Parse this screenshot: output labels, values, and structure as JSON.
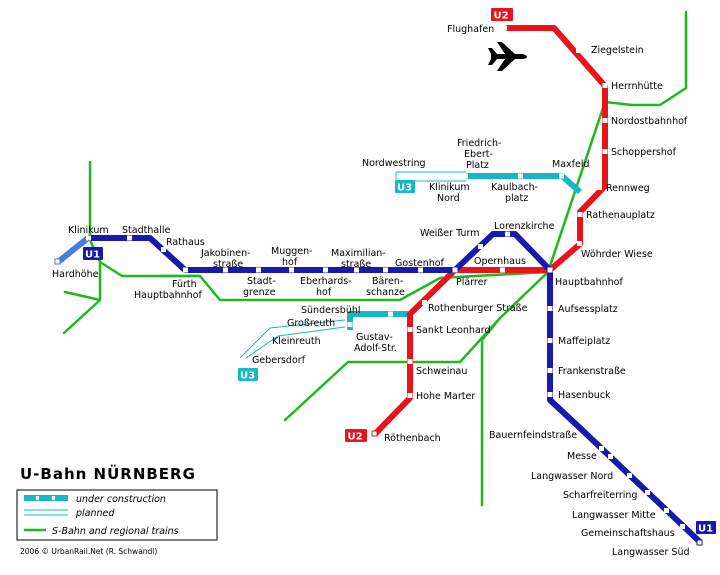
{
  "title": "U-Bahn NÜRNBERG",
  "credit": "2006 © UrbanRail.Net (R. Schwandl)",
  "legend": {
    "under_construction": "under construction",
    "planned": "planned",
    "sbahn": "S-Bahn and regional trains"
  },
  "lines": {
    "u1": {
      "label": "U1",
      "color": "#1a1aaa"
    },
    "u2": {
      "label": "U2",
      "color": "#e8141b"
    },
    "u3": {
      "label": "U3",
      "color": "#16b8c8"
    },
    "sbahn": {
      "color": "#1fb81f"
    }
  },
  "stations": {
    "flughafen": "Flughafen",
    "ziegelstein": "Ziegelstein",
    "herrnhuette": "Herrnhütte",
    "nordostbahnhof": "Nordostbahnhof",
    "schoppershof": "Schoppershof",
    "rennweg": "Rennweg",
    "rathenauplatz": "Rathenauplatz",
    "woehrder_wiese": "Wöhrder Wiese",
    "hauptbahnhof": "Hauptbahnhof",
    "aufsessplatz": "Aufsessplatz",
    "maffeiplatz": "Maffeiplatz",
    "frankenstrasse": "Frankenstraße",
    "hasenbuck": "Hasenbuck",
    "bauernfeindstrasse": "Bauernfeindstraße",
    "messe": "Messe",
    "langwasser_nord": "Langwasser Nord",
    "scharfreiterring": "Scharfreiterring",
    "langwasser_mitte": "Langwasser Mitte",
    "gemeinschaftshaus": "Gemeinschaftshaus",
    "langwasser_sued": "Langwasser Süd",
    "nordwestring": "Nordwestring",
    "friedrich_ebert_platz_1": "Friedrich-",
    "friedrich_ebert_platz_2": "Ebert-",
    "friedrich_ebert_platz_3": "Platz",
    "maxfeld": "Maxfeld",
    "klinikum_nord_1": "Klinikum",
    "klinikum_nord_2": "Nord",
    "kaulbachplatz_1": "Kaulbach-",
    "kaulbachplatz_2": "platz",
    "klinikum": "Klinikum",
    "stadthalle": "Stadthalle",
    "rathaus": "Rathaus",
    "hardhoehe": "Hardhöhe",
    "jakobinenstrasse_1": "Jakobinen-",
    "jakobinenstrasse_2": "straße",
    "muggenhof_1": "Muggen-",
    "muggenhof_2": "hof",
    "maximilianstrasse_1": "Maximilian-",
    "maximilianstrasse_2": "straße",
    "gostenhof": "Gostenhof",
    "stadtgrenze_1": "Stadt-",
    "stadtgrenze_2": "grenze",
    "eberhardshof_1": "Eberhards-",
    "eberhardshof_2": "hof",
    "baerenschanze_1": "Bären-",
    "baerenschanze_2": "schanze",
    "fuerth_hbf_1": "Fürth",
    "fuerth_hbf_2": "Hauptbahnhof",
    "weisser_turm": "Weißer Turm",
    "lorenzkirche": "Lorenzkirche",
    "opernhaus": "Opernhaus",
    "plaerrer": "Plärrer",
    "rothenburger_strasse": "Rothenburger Straße",
    "sundersbuehl": "Sündersbühl",
    "grossreuth": "Großreuth",
    "kleinreuth": "Kleinreuth",
    "gustav_adolf_1": "Gustav-",
    "gustav_adolf_2": "Adolf-Str.",
    "gebersdorf": "Gebersdorf",
    "sankt_leonhard": "Sankt Leonhard",
    "schweinau": "Schweinau",
    "hohe_marter": "Hohe Marter",
    "roethenbach": "Röthenbach"
  }
}
